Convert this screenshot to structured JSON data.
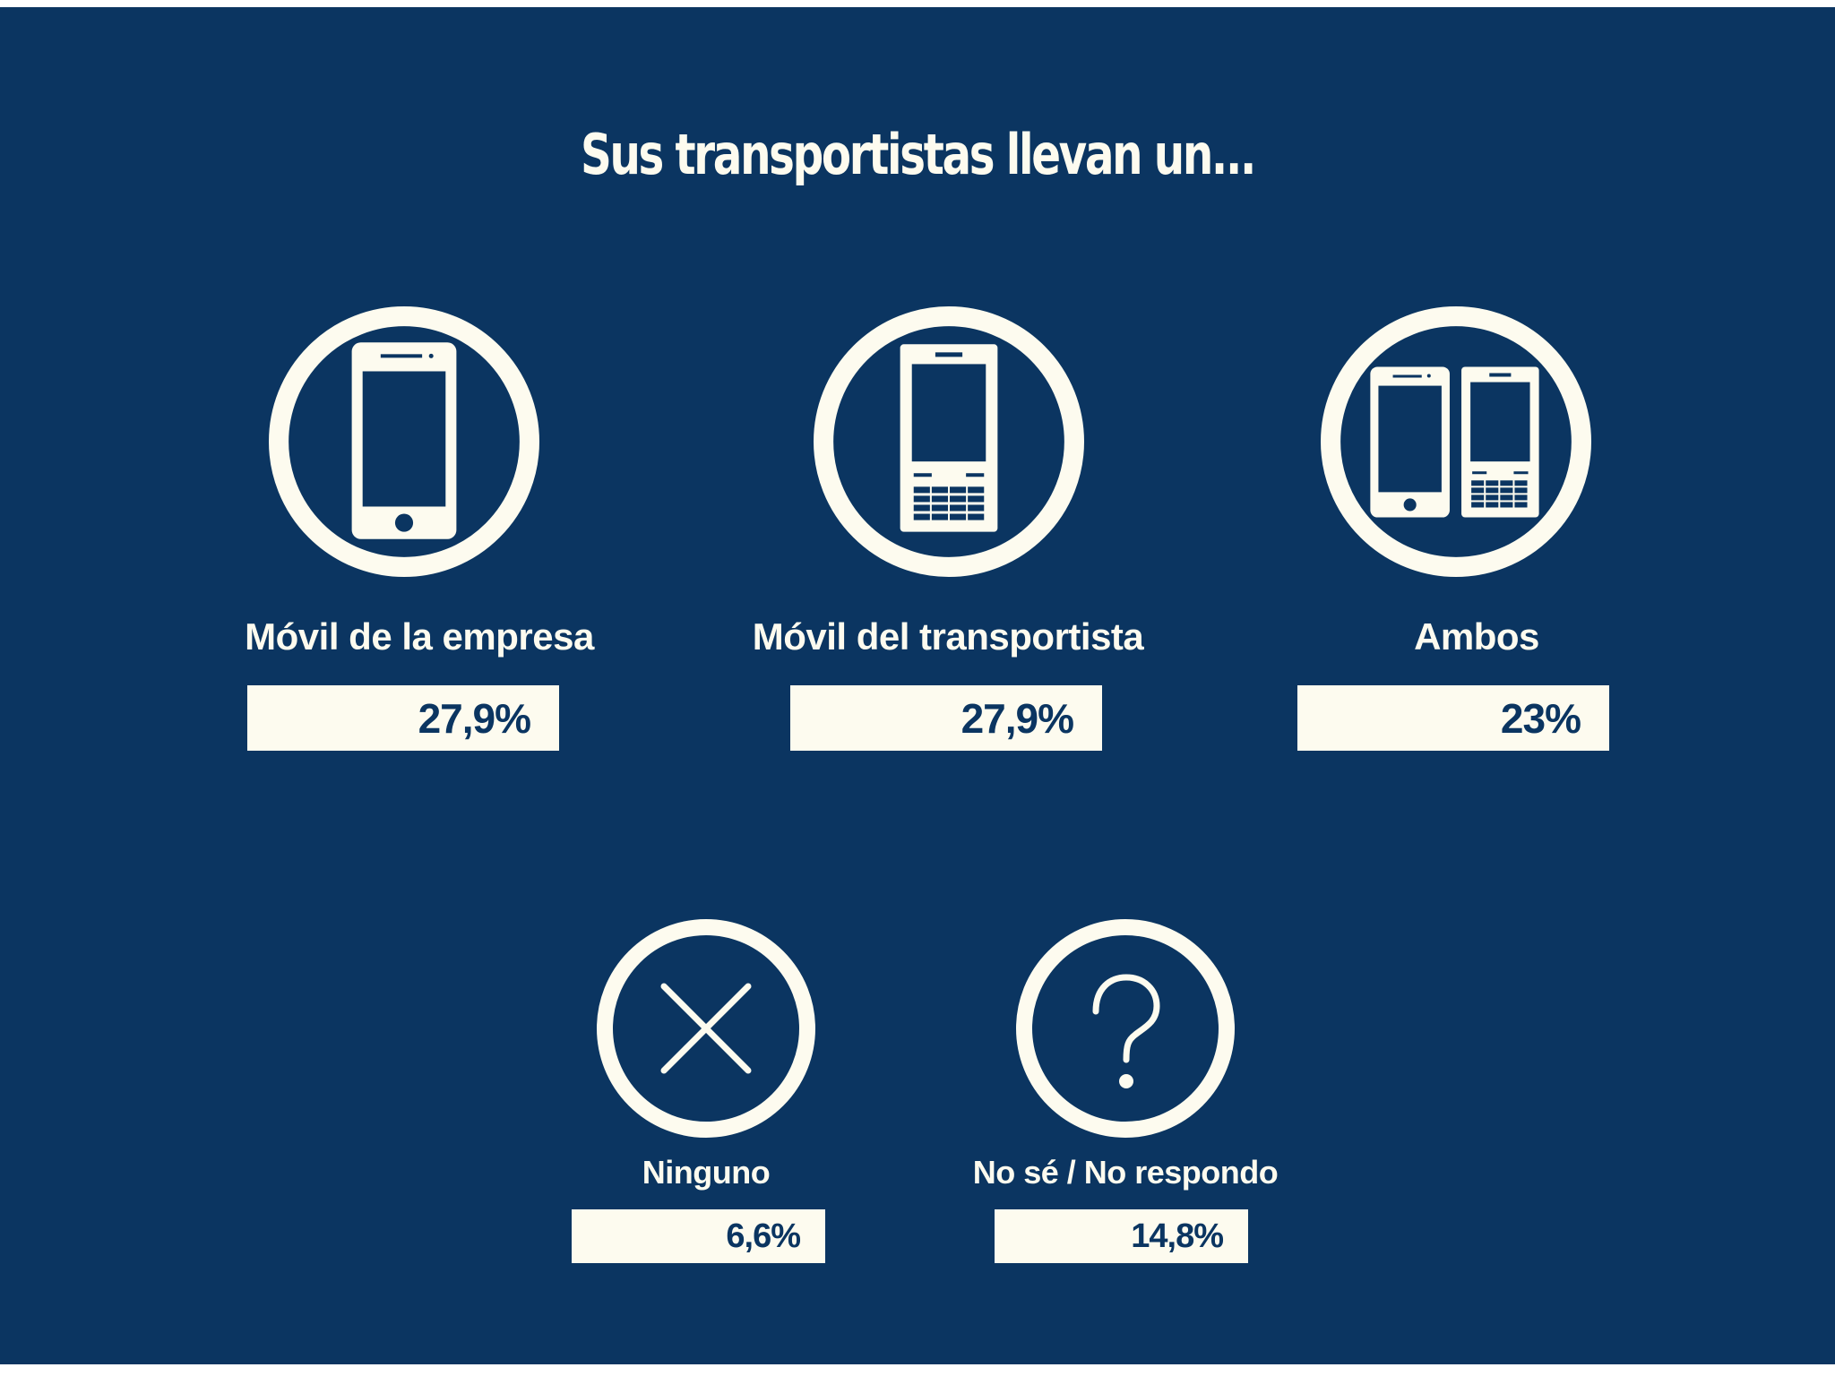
{
  "colors": {
    "background": "#0b3561",
    "foreground": "#fdfbef"
  },
  "title": "Sus transportistas llevan un...",
  "chart_data": {
    "type": "table",
    "title": "Sus transportistas llevan un...",
    "unit": "%",
    "categories": [
      "Móvil de la empresa",
      "Móvil del transportista",
      "Ambos",
      "Ninguno",
      "No sé / No respondo"
    ],
    "values": [
      27.9,
      27.9,
      23,
      6.6,
      14.8
    ],
    "items": [
      {
        "label": "Móvil de la empresa",
        "value_label": "27,9%",
        "value": 27.9,
        "icon": "smartphone-icon"
      },
      {
        "label": "Móvil del transportista",
        "value_label": "27,9%",
        "value": 27.9,
        "icon": "keypad-phone-icon"
      },
      {
        "label": "Ambos",
        "value_label": "23%",
        "value": 23,
        "icon": "both-phones-icon"
      },
      {
        "label": "Ninguno",
        "value_label": "6,6%",
        "value": 6.6,
        "icon": "x-icon"
      },
      {
        "label": "No sé / No respondo",
        "value_label": "14,8%",
        "value": 14.8,
        "icon": "question-mark-icon"
      }
    ]
  }
}
